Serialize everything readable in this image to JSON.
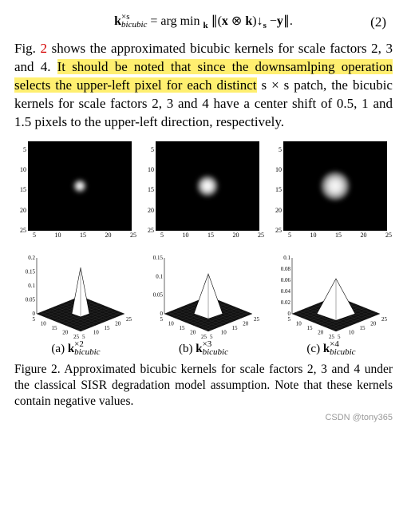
{
  "equation": {
    "lhs_k": "k",
    "lhs_sup": "×s",
    "lhs_sub": "bicubic",
    "rhs": "= arg min ",
    "min_sub": "k",
    "norm_open": "∥(",
    "x": "x",
    "otimes": " ⊗ ",
    "k2": "k",
    "norm_mid": ")↓",
    "down_sub": "s",
    "minus": " −",
    "y": "y",
    "norm_close": "∥.",
    "number": "(2)"
  },
  "paragraph": {
    "pre": "Fig. ",
    "figref": "2",
    "post1": " shows the approximated bicubic kernels for scale factors 2, 3 and 4. ",
    "hl": "It should be noted that since the downsamlping operation selects the upper-left pixel for each distinct",
    "post2": " s × s patch, the bicubic kernels for scale factors 2, 3 and 4 have a center shift of 0.5, 1 and 1.5 pixels to the upper-left direction, respectively."
  },
  "heatmaps": {
    "y_ticks": [
      "5",
      "10",
      "15",
      "20",
      "25"
    ],
    "x_ticks": [
      "5",
      "10",
      "15",
      "20",
      "25"
    ],
    "panels": [
      {
        "blob_size": 16,
        "blob_bg": "radial-gradient(circle,#fff 0%,#fff 25%,#888 55%,#000 80%)"
      },
      {
        "blob_size": 26,
        "blob_bg": "radial-gradient(circle,#fff 0%,#eee 30%,#777 60%,#000 85%)"
      },
      {
        "blob_size": 36,
        "blob_bg": "radial-gradient(circle,#fff 0%,#ddd 35%,#666 65%,#000 88%)"
      }
    ]
  },
  "surfaces": {
    "panels": [
      {
        "z_ticks": [
          "0.2",
          "0.15",
          "0.1",
          "0.05",
          "0"
        ],
        "xy_ticks": [
          "5",
          "10",
          "15",
          "20",
          "25"
        ],
        "peak_h": 58,
        "peak_w": 11
      },
      {
        "z_ticks": [
          "0.15",
          "0.1",
          "0.05",
          "0"
        ],
        "xy_ticks": [
          "5",
          "10",
          "15",
          "20",
          "25"
        ],
        "peak_h": 50,
        "peak_w": 18
      },
      {
        "z_ticks": [
          "0.1",
          "0.08",
          "0.06",
          "0.04",
          "0.02",
          "0"
        ],
        "xy_ticks": [
          "5",
          "10",
          "15",
          "20",
          "25"
        ],
        "peak_h": 44,
        "peak_w": 24
      }
    ]
  },
  "subcaptions": [
    {
      "label": "(a) ",
      "k": "k",
      "sup": "×2",
      "sub": "bicubic"
    },
    {
      "label": "(b) ",
      "k": "k",
      "sup": "×3",
      "sub": "bicubic"
    },
    {
      "label": "(c) ",
      "k": "k",
      "sup": "×4",
      "sub": "bicubic"
    }
  ],
  "caption": "Figure 2. Approximated bicubic kernels for scale factors 2, 3 and 4 under the classical SISR degradation model assumption. Note that these kernels contain negative values.",
  "watermark": "CSDN @tony365"
}
